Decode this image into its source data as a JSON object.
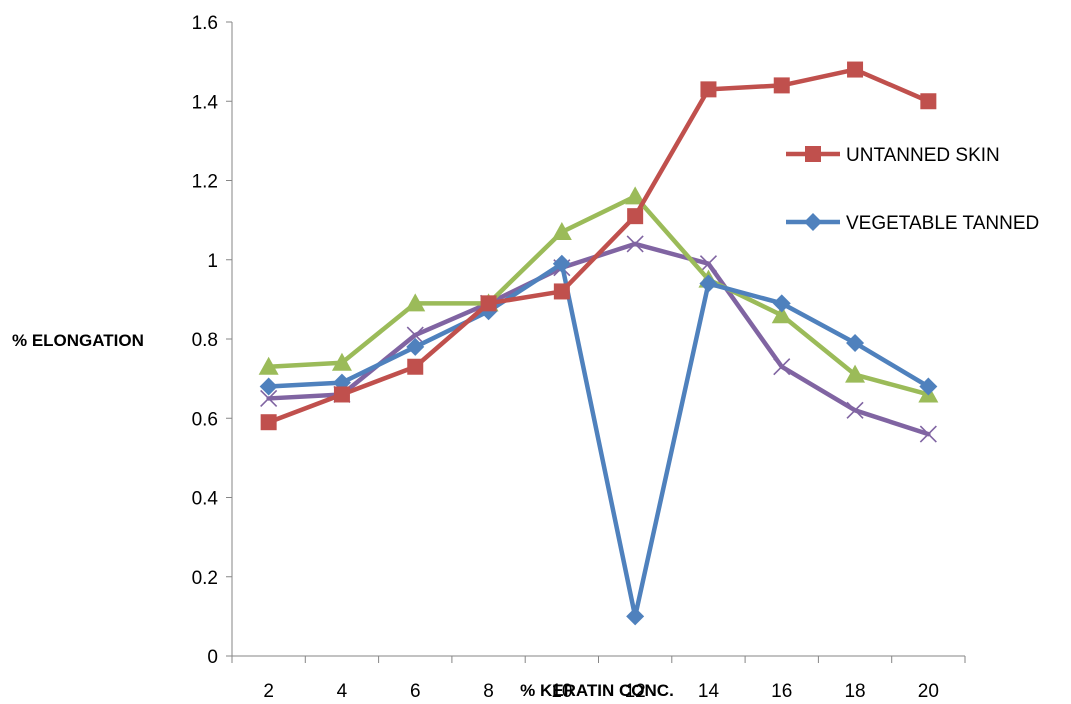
{
  "chart_data": {
    "type": "line",
    "title": "",
    "xlabel": "% KERATIN CONC.",
    "ylabel": "% ELONGATION",
    "categories": [
      "2",
      "4",
      "6",
      "8",
      "10",
      "12",
      "14",
      "16",
      "18",
      "20"
    ],
    "ylim": [
      0,
      1.6
    ],
    "yticks": [
      "0",
      "0.2",
      "0.4",
      "0.6",
      "0.8",
      "1",
      "1.2",
      "1.4",
      "1.6"
    ],
    "grid": false,
    "legend_position": "right",
    "series": [
      {
        "name": "UNTANNED SKIN",
        "color": "#C0504D",
        "marker": "square",
        "in_legend": true,
        "values": [
          0.59,
          0.66,
          0.73,
          0.89,
          0.92,
          1.11,
          1.43,
          1.44,
          1.48,
          1.4
        ]
      },
      {
        "name": "VEGETABLE TANNED",
        "color": "#4F81BD",
        "marker": "diamond",
        "in_legend": true,
        "values": [
          0.68,
          0.69,
          0.78,
          0.87,
          0.99,
          0.1,
          0.94,
          0.89,
          0.79,
          0.68
        ]
      },
      {
        "name": "",
        "color": "#9BBB59",
        "marker": "triangle",
        "in_legend": false,
        "values": [
          0.73,
          0.74,
          0.89,
          0.89,
          1.07,
          1.16,
          0.95,
          0.86,
          0.71,
          0.66
        ]
      },
      {
        "name": "",
        "color": "#8064A2",
        "marker": "x",
        "in_legend": false,
        "values": [
          0.65,
          0.66,
          0.81,
          0.89,
          0.98,
          1.04,
          0.99,
          0.73,
          0.62,
          0.56
        ]
      }
    ]
  }
}
